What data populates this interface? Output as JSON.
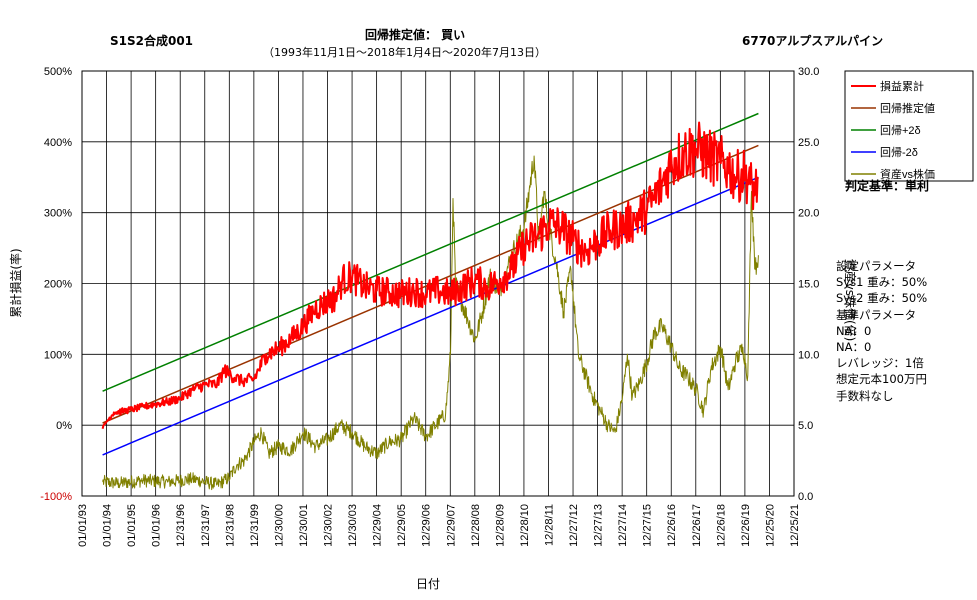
{
  "header": {
    "code": "S1S2合成001",
    "title": "回帰推定値：  買い",
    "period": "（1993年11月1日～2018年1月4日～2020年7月13日）",
    "ticker": "6770アルプスアルパイン"
  },
  "judgement": "判定基準：単利",
  "params": [
    "設定パラメータ",
    "  Sys1 重み：50%",
    "  Sys2 重み：50%",
    "基準パラメータ",
    "  NA：0",
    "  NA：0",
    "レバレッジ：1倍",
    "想定元本100万円",
    "手数料なし"
  ],
  "chart_data": {
    "type": "line",
    "xlabel": "日付",
    "ylabel": "累計損益(率)",
    "y2label": "資産vs株価(倍)",
    "ylim": [
      -100,
      500
    ],
    "y2lim": [
      0.0,
      30.0
    ],
    "y_ticks": [
      "500%",
      "400%",
      "300%",
      "200%",
      "100%",
      "0%",
      "-100%"
    ],
    "y2_ticks": [
      "30.0",
      "25.0",
      "20.0",
      "15.0",
      "10.0",
      "5.0",
      "0.0"
    ],
    "x_ticks": [
      "01/01/93",
      "01/01/94",
      "01/01/95",
      "01/01/96",
      "12/31/96",
      "12/31/97",
      "12/31/98",
      "12/31/99",
      "12/30/00",
      "12/30/01",
      "12/30/02",
      "12/30/03",
      "12/29/04",
      "12/29/05",
      "12/29/06",
      "12/29/07",
      "12/28/08",
      "12/28/09",
      "12/28/10",
      "12/28/11",
      "12/27/12",
      "12/27/13",
      "12/27/14",
      "12/27/15",
      "12/26/16",
      "12/26/17",
      "12/26/18",
      "12/26/19",
      "12/25/20",
      "12/25/21"
    ],
    "grid": true,
    "legend_position": "top-right",
    "series": [
      {
        "name": "損益累計",
        "color": "#ff0000",
        "axis": "left",
        "x": [
          1993.84,
          1994.0,
          1994.3,
          1994.7,
          1995.0,
          1995.5,
          1996.0,
          1996.5,
          1997.0,
          1997.5,
          1998.0,
          1998.5,
          1998.8,
          1999.0,
          1999.5,
          2000.0,
          2000.5,
          2001.0,
          2001.5,
          2002.0,
          2002.5,
          2003.0,
          2003.3,
          2003.6,
          2004.0,
          2004.5,
          2005.0,
          2005.5,
          2006.0,
          2006.5,
          2007.0,
          2007.5,
          2008.0,
          2008.5,
          2009.0,
          2009.5,
          2010.0,
          2010.5,
          2011.0,
          2011.5,
          2012.0,
          2012.5,
          2013.0,
          2013.5,
          2014.0,
          2014.5,
          2015.0,
          2015.5,
          2016.0,
          2016.3,
          2016.6,
          2017.0,
          2017.5,
          2018.0,
          2018.5,
          2019.0,
          2019.3,
          2019.6,
          2020.0,
          2020.2,
          2020.4,
          2020.53
        ],
        "values": [
          -5,
          5,
          18,
          20,
          22,
          26,
          30,
          33,
          38,
          50,
          57,
          58,
          78,
          72,
          62,
          65,
          100,
          108,
          122,
          140,
          165,
          175,
          180,
          205,
          210,
          195,
          190,
          188,
          185,
          190,
          185,
          190,
          185,
          195,
          205,
          195,
          205,
          220,
          255,
          265,
          285,
          280,
          260,
          245,
          260,
          275,
          280,
          290,
          305,
          320,
          340,
          370,
          385,
          390,
          380,
          370,
          365,
          350,
          355,
          340,
          330,
          350
        ]
      },
      {
        "name": "回帰推定値",
        "color": "#993300",
        "axis": "left",
        "x": [
          1993.84,
          2020.53
        ],
        "values": [
          3,
          395
        ]
      },
      {
        "name": "回帰+2δ",
        "color": "#008000",
        "axis": "left",
        "x": [
          1993.84,
          2020.53
        ],
        "values": [
          48,
          440
        ]
      },
      {
        "name": "回帰-2δ",
        "color": "#0000ff",
        "axis": "left",
        "x": [
          1993.84,
          2020.53
        ],
        "values": [
          -42,
          350
        ]
      },
      {
        "name": "資産vs株価",
        "color": "#808000",
        "axis": "right",
        "x": [
          1993.84,
          1994.5,
          1995.5,
          1996.5,
          1997.5,
          1998.5,
          1999.0,
          1999.3,
          1999.6,
          2000.0,
          2000.3,
          2000.6,
          2001.0,
          2001.5,
          2002.0,
          2002.5,
          2003.0,
          2003.5,
          2004.0,
          2004.5,
          2005.0,
          2005.5,
          2006.0,
          2006.5,
          2007.0,
          2007.5,
          2007.8,
          2008.0,
          2008.1,
          2008.2,
          2008.4,
          2008.7,
          2009.0,
          2009.3,
          2009.6,
          2010.0,
          2010.3,
          2010.6,
          2011.0,
          2011.2,
          2011.4,
          2011.6,
          2011.8,
          2012.0,
          2012.3,
          2012.6,
          2012.9,
          2013.2,
          2013.5,
          2013.8,
          2014.1,
          2014.4,
          2014.7,
          2015.0,
          2015.2,
          2015.4,
          2015.7,
          2016.0,
          2016.3,
          2016.6,
          2017.0,
          2017.3,
          2017.6,
          2018.0,
          2018.3,
          2018.6,
          2019.0,
          2019.3,
          2019.6,
          2019.9,
          2020.1,
          2020.25,
          2020.4,
          2020.53
        ],
        "values": [
          1.0,
          0.9,
          1.1,
          1.0,
          1.2,
          0.8,
          1.3,
          2.2,
          2.5,
          3.8,
          4.5,
          3.0,
          3.5,
          3.2,
          4.5,
          3.5,
          4.0,
          5.0,
          4.5,
          3.5,
          3.0,
          3.8,
          4.0,
          5.5,
          4.2,
          5.2,
          5.8,
          10.0,
          21.0,
          15.0,
          14.0,
          12.5,
          11.0,
          13.0,
          15.5,
          14.5,
          16.0,
          17.5,
          19.0,
          21.5,
          24.0,
          18.0,
          21.5,
          19.0,
          16.5,
          13.0,
          16.0,
          10.0,
          8.5,
          7.0,
          6.0,
          5.0,
          4.5,
          7.0,
          10.0,
          7.0,
          8.0,
          9.5,
          11.5,
          12.0,
          10.5,
          9.0,
          8.5,
          7.5,
          6.0,
          9.0,
          10.5,
          7.5,
          9.5,
          10.5,
          8.5,
          21.5,
          16.0,
          17.0
        ]
      }
    ]
  }
}
